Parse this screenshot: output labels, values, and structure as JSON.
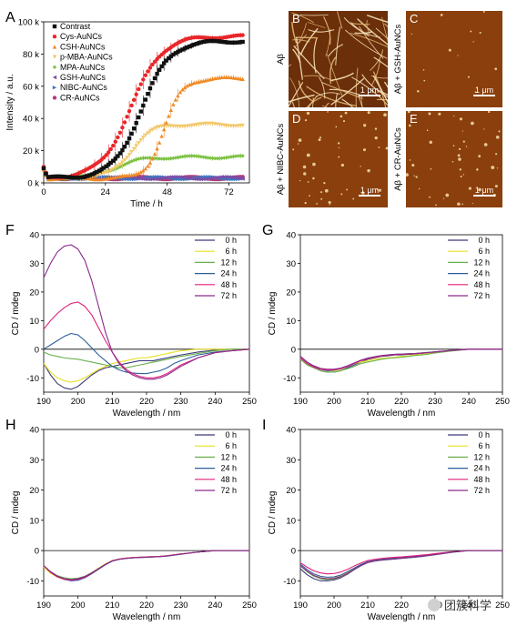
{
  "colors": {
    "contrast": "#111111",
    "cys": "#e8262a",
    "csh": "#f08a24",
    "pmba": "#f2c86a",
    "mpa": "#7cc242",
    "gsh": "#7a4fa8",
    "nibc": "#3a78c2",
    "cr": "#b03c7a",
    "cd_0h": "#3b3b7a",
    "cd_6h": "#e8e020",
    "cd_12h": "#6ab04c",
    "cd_24h": "#2d5f9a",
    "cd_48h": "#e0207a",
    "cd_72h": "#8a2a8a"
  },
  "panels": {
    "A": "A",
    "B": "B",
    "C": "C",
    "D": "D",
    "E": "E",
    "F": "F",
    "G": "G",
    "H": "H",
    "I": "I"
  },
  "micrographs": [
    {
      "id": "B",
      "label": "B",
      "side_label": "Aβ",
      "scale": "1 μm",
      "texture": "fibrils"
    },
    {
      "id": "C",
      "label": "C",
      "side_label": "Aβ + GSH-AuNCs",
      "scale": "1 μm",
      "texture": "sparse"
    },
    {
      "id": "D",
      "label": "D",
      "side_label": "Aβ + NIBC-AuNCs",
      "scale": "1 μm",
      "texture": "dots"
    },
    {
      "id": "E",
      "label": "E",
      "side_label": "Aβ + CR-AuNCs",
      "scale": "1 μm",
      "texture": "dots"
    }
  ],
  "watermark": "团簇科学",
  "chart_data": [
    {
      "id": "A",
      "type": "scatter",
      "xlabel": "Time / h",
      "ylabel": "Intensity / a.u.",
      "xlim": [
        0,
        80
      ],
      "ylim": [
        0,
        100000
      ],
      "xticks": [
        0,
        24,
        48,
        72
      ],
      "xtick_labels": [
        "0",
        "24",
        "48",
        "72"
      ],
      "yticks": [
        0,
        20000,
        40000,
        60000,
        80000,
        100000
      ],
      "ytick_labels": [
        "0 k",
        "20 k",
        "40 k",
        "60 k",
        "80 k",
        "100 k"
      ],
      "legend_position": "top-left",
      "series": [
        {
          "name": "Contrast",
          "color_key": "contrast",
          "marker": "square",
          "sigmoid": [
            85000,
            38,
            5.5,
            3000
          ]
        },
        {
          "name": "Cys-AuNCs",
          "color_key": "cys",
          "marker": "circle",
          "sigmoid": [
            88000,
            34,
            6,
            3000
          ]
        },
        {
          "name": "CSH-AuNCs",
          "color_key": "csh",
          "marker": "triangle",
          "sigmoid": [
            62000,
            47,
            3.5,
            3000
          ]
        },
        {
          "name": "p-MBA-AuNCs",
          "color_key": "pmba",
          "marker": "triangle-down",
          "sigmoid": [
            33000,
            34,
            4,
            3000
          ]
        },
        {
          "name": "MPA-AuNCs",
          "color_key": "mpa",
          "marker": "diamond",
          "sigmoid": [
            13000,
            28,
            5,
            3000
          ]
        },
        {
          "name": "GSH-AuNCs",
          "color_key": "gsh",
          "marker": "triangle-left",
          "sigmoid": [
            0,
            40,
            5,
            3000
          ]
        },
        {
          "name": "NIBC-AuNCs",
          "color_key": "nibc",
          "marker": "triangle-right",
          "sigmoid": [
            0,
            40,
            5,
            3000
          ]
        },
        {
          "name": "CR-AuNCs",
          "color_key": "cr",
          "marker": "hexagon",
          "sigmoid": [
            0,
            40,
            5,
            3000
          ]
        }
      ]
    },
    {
      "id": "F",
      "type": "line",
      "xlabel": "Wavelength / nm",
      "ylabel": "CD / mdeg",
      "xlim": [
        190,
        250
      ],
      "ylim": [
        -15,
        40
      ],
      "xticks": [
        190,
        200,
        210,
        220,
        230,
        240,
        250
      ],
      "yticks": [
        -10,
        0,
        10,
        20,
        30,
        40
      ],
      "x": [
        190,
        192,
        194,
        196,
        198,
        200,
        202,
        204,
        206,
        208,
        210,
        212,
        214,
        216,
        218,
        220,
        222,
        224,
        226,
        228,
        230,
        235,
        240,
        245,
        250
      ],
      "series": [
        {
          "name": "0 h",
          "color_key": "cd_0h",
          "values": [
            -5,
            -9,
            -12,
            -13.5,
            -14,
            -13,
            -11,
            -9,
            -7.5,
            -6.5,
            -6,
            -5.5,
            -5,
            -4.5,
            -4,
            -4,
            -4,
            -3.5,
            -3,
            -2.5,
            -2,
            -1,
            -0.3,
            0,
            0
          ]
        },
        {
          "name": "6 h",
          "color_key": "cd_6h",
          "values": [
            -5,
            -8,
            -10,
            -11,
            -11.5,
            -11,
            -10,
            -8.5,
            -7,
            -6,
            -5,
            -4.5,
            -4,
            -3.5,
            -3,
            -3,
            -2.5,
            -2,
            -1.5,
            -1,
            -0.5,
            0,
            0,
            0,
            0
          ]
        },
        {
          "name": "12 h",
          "color_key": "cd_12h",
          "values": [
            -1,
            -2,
            -2.5,
            -3,
            -3.3,
            -3.5,
            -4,
            -4.5,
            -5,
            -5.5,
            -6,
            -6.5,
            -6.5,
            -6,
            -5.5,
            -5,
            -4.5,
            -4,
            -3.5,
            -3,
            -2.5,
            -1.5,
            -0.5,
            0,
            0
          ]
        },
        {
          "name": "24 h",
          "color_key": "cd_24h",
          "values": [
            0,
            1.5,
            3,
            4.5,
            5.5,
            5,
            3,
            0.5,
            -2,
            -4,
            -6,
            -7.2,
            -8,
            -8.3,
            -8.5,
            -8.5,
            -8,
            -7.5,
            -6.5,
            -5,
            -4,
            -2,
            -1,
            -0.5,
            0
          ]
        },
        {
          "name": "48 h",
          "color_key": "cd_48h",
          "values": [
            7,
            10,
            12.5,
            14.5,
            16,
            16.5,
            15,
            12,
            7.5,
            3,
            -1,
            -4.5,
            -7,
            -8.5,
            -9.5,
            -10,
            -10,
            -9.5,
            -8.5,
            -7,
            -5.5,
            -3,
            -1.2,
            -0.5,
            0
          ]
        },
        {
          "name": "72 h",
          "color_key": "cd_72h",
          "values": [
            25,
            30,
            34,
            36,
            36.5,
            35,
            31,
            24,
            15,
            6,
            -1,
            -5,
            -7.5,
            -9,
            -10,
            -10.5,
            -10.5,
            -10,
            -9,
            -7.5,
            -6,
            -3,
            -1.2,
            -0.5,
            0
          ]
        }
      ]
    },
    {
      "id": "G",
      "type": "line",
      "xlabel": "Wavelength / nm",
      "ylabel": "CD / mdeg",
      "xlim": [
        190,
        250
      ],
      "ylim": [
        -15,
        40
      ],
      "xticks": [
        190,
        200,
        210,
        220,
        230,
        240,
        250
      ],
      "yticks": [
        -10,
        0,
        10,
        20,
        30,
        40
      ],
      "x": [
        190,
        192,
        194,
        196,
        198,
        200,
        202,
        204,
        206,
        208,
        210,
        212,
        214,
        216,
        218,
        220,
        222,
        224,
        226,
        228,
        230,
        235,
        240,
        245,
        250
      ],
      "series": [
        {
          "name": "0 h",
          "color_key": "cd_0h",
          "values": [
            -3,
            -5,
            -6.5,
            -7.5,
            -8,
            -8,
            -7.5,
            -6.5,
            -5.5,
            -4.5,
            -3.5,
            -3,
            -2.5,
            -2.3,
            -2,
            -2,
            -1.8,
            -1.7,
            -1.5,
            -1.3,
            -1,
            -0.5,
            0,
            0,
            0
          ]
        },
        {
          "name": "6 h",
          "color_key": "cd_6h",
          "values": [
            -3,
            -5,
            -6,
            -7,
            -7.5,
            -7.5,
            -7,
            -6,
            -5,
            -4.5,
            -4,
            -3.5,
            -3.2,
            -3,
            -2.8,
            -2.5,
            -2.3,
            -2,
            -1.8,
            -1.5,
            -1.2,
            -0.5,
            0,
            0,
            0
          ]
        },
        {
          "name": "12 h",
          "color_key": "cd_12h",
          "values": [
            -3.5,
            -5.5,
            -6.5,
            -7.5,
            -8,
            -8,
            -7.5,
            -6.8,
            -6,
            -5,
            -4.5,
            -4,
            -3.5,
            -3.2,
            -3,
            -2.8,
            -2.5,
            -2.2,
            -2,
            -1.7,
            -1.3,
            -0.6,
            0,
            0,
            0
          ]
        },
        {
          "name": "24 h",
          "color_key": "cd_24h",
          "values": [
            -2.5,
            -4.5,
            -6,
            -7,
            -7.5,
            -7.3,
            -6.8,
            -6,
            -5,
            -4,
            -3.2,
            -2.7,
            -2.3,
            -2,
            -1.8,
            -1.7,
            -1.6,
            -1.5,
            -1.3,
            -1.1,
            -0.9,
            -0.4,
            0,
            0,
            0
          ]
        },
        {
          "name": "48 h",
          "color_key": "cd_48h",
          "values": [
            -3,
            -5,
            -6.2,
            -7,
            -7.3,
            -7.2,
            -6.8,
            -6,
            -5,
            -4,
            -3.3,
            -2.8,
            -2.4,
            -2.1,
            -1.9,
            -1.8,
            -1.7,
            -1.6,
            -1.4,
            -1.2,
            -1,
            -0.4,
            0,
            0,
            0
          ]
        },
        {
          "name": "72 h",
          "color_key": "cd_72h",
          "values": [
            -2.5,
            -4.5,
            -5.8,
            -6.7,
            -7,
            -7,
            -6.6,
            -5.8,
            -4.8,
            -3.8,
            -3.1,
            -2.6,
            -2.2,
            -2,
            -1.8,
            -1.7,
            -1.6,
            -1.5,
            -1.3,
            -1.1,
            -0.9,
            -0.4,
            0,
            0,
            0
          ]
        }
      ]
    },
    {
      "id": "H",
      "type": "line",
      "xlabel": "Wavelength / nm",
      "ylabel": "CD / mdeg",
      "xlim": [
        190,
        250
      ],
      "ylim": [
        -15,
        40
      ],
      "xticks": [
        190,
        200,
        210,
        220,
        230,
        240,
        250
      ],
      "yticks": [
        -10,
        0,
        10,
        20,
        30,
        40
      ],
      "x": [
        190,
        192,
        194,
        196,
        198,
        200,
        202,
        204,
        206,
        208,
        210,
        212,
        214,
        216,
        218,
        220,
        222,
        224,
        226,
        228,
        230,
        235,
        240,
        245,
        250
      ],
      "series": [
        {
          "name": "0 h",
          "color_key": "cd_0h",
          "values": [
            -5,
            -7,
            -8.5,
            -9.3,
            -9.7,
            -9.5,
            -8.8,
            -7.5,
            -6,
            -4.5,
            -3.3,
            -2.8,
            -2.5,
            -2.3,
            -2.2,
            -2.1,
            -2,
            -1.9,
            -1.7,
            -1.4,
            -1.1,
            -0.5,
            0,
            0,
            0
          ]
        },
        {
          "name": "6 h",
          "color_key": "cd_6h",
          "values": [
            -5.5,
            -7.5,
            -8.8,
            -9.5,
            -9.7,
            -9.3,
            -8.5,
            -7.3,
            -5.8,
            -4.4,
            -3.3,
            -2.8,
            -2.5,
            -2.3,
            -2.2,
            -2.1,
            -2,
            -1.9,
            -1.7,
            -1.4,
            -1.1,
            -0.5,
            0,
            0,
            0
          ]
        },
        {
          "name": "12 h",
          "color_key": "cd_12h",
          "values": [
            -5,
            -7,
            -8.3,
            -9,
            -9.3,
            -9.1,
            -8.5,
            -7.3,
            -5.9,
            -4.5,
            -3.4,
            -2.9,
            -2.6,
            -2.4,
            -2.3,
            -2.2,
            -2.1,
            -2,
            -1.8,
            -1.5,
            -1.2,
            -0.5,
            0,
            0,
            0
          ]
        },
        {
          "name": "24 h",
          "color_key": "cd_24h",
          "values": [
            -5,
            -7,
            -8.5,
            -9.5,
            -10,
            -9.8,
            -9,
            -7.7,
            -6.2,
            -4.7,
            -3.5,
            -2.9,
            -2.6,
            -2.4,
            -2.3,
            -2.2,
            -2.1,
            -2,
            -1.8,
            -1.5,
            -1.2,
            -0.5,
            0,
            0,
            0
          ]
        },
        {
          "name": "48 h",
          "color_key": "cd_48h",
          "values": [
            -5,
            -7.2,
            -8.7,
            -9.5,
            -9.8,
            -9.5,
            -8.8,
            -7.5,
            -6,
            -4.6,
            -3.4,
            -2.8,
            -2.5,
            -2.3,
            -2.2,
            -2.1,
            -2,
            -1.9,
            -1.7,
            -1.4,
            -1.1,
            -0.5,
            0,
            0,
            0
          ]
        },
        {
          "name": "72 h",
          "color_key": "cd_72h",
          "values": [
            -5,
            -7,
            -8.5,
            -9.3,
            -9.6,
            -9.3,
            -8.6,
            -7.4,
            -6,
            -4.6,
            -3.4,
            -2.9,
            -2.6,
            -2.4,
            -2.3,
            -2.2,
            -2.1,
            -2,
            -1.8,
            -1.5,
            -1.2,
            -0.5,
            0,
            0,
            0
          ]
        }
      ]
    },
    {
      "id": "I",
      "type": "line",
      "xlabel": "Wavelength / nm",
      "ylabel": "CD / mdeg",
      "xlim": [
        190,
        250
      ],
      "ylim": [
        -15,
        40
      ],
      "xticks": [
        190,
        200,
        210,
        220,
        230,
        240,
        250
      ],
      "yticks": [
        -10,
        0,
        10,
        20,
        30,
        40
      ],
      "x": [
        190,
        192,
        194,
        196,
        198,
        200,
        202,
        204,
        206,
        208,
        210,
        212,
        214,
        216,
        218,
        220,
        222,
        224,
        226,
        228,
        230,
        235,
        240,
        245,
        250
      ],
      "series": [
        {
          "name": "0 h",
          "color_key": "cd_0h",
          "values": [
            -6,
            -8,
            -9.3,
            -10,
            -10,
            -9.7,
            -9,
            -7.8,
            -6.3,
            -5,
            -4,
            -3.5,
            -3.2,
            -3,
            -2.8,
            -2.6,
            -2.4,
            -2.2,
            -2,
            -1.7,
            -1.4,
            -0.6,
            0,
            0,
            0
          ]
        },
        {
          "name": "6 h",
          "color_key": "cd_6h",
          "values": [
            -5,
            -7,
            -8.3,
            -9,
            -9.3,
            -9.1,
            -8.5,
            -7.3,
            -6,
            -4.8,
            -3.8,
            -3.3,
            -3,
            -2.8,
            -2.6,
            -2.4,
            -2.2,
            -2,
            -1.8,
            -1.5,
            -1.2,
            -0.5,
            0,
            0,
            0
          ]
        },
        {
          "name": "12 h",
          "color_key": "cd_12h",
          "values": [
            -5,
            -7,
            -8.5,
            -9.3,
            -9.6,
            -9.4,
            -8.8,
            -7.6,
            -6.2,
            -4.9,
            -3.9,
            -3.4,
            -3.1,
            -2.9,
            -2.7,
            -2.5,
            -2.3,
            -2.1,
            -1.9,
            -1.6,
            -1.3,
            -0.5,
            0,
            0,
            0
          ]
        },
        {
          "name": "24 h",
          "color_key": "cd_24h",
          "values": [
            -4.5,
            -6.3,
            -7.7,
            -8.5,
            -8.8,
            -8.7,
            -8.1,
            -7,
            -5.8,
            -4.6,
            -3.7,
            -3.2,
            -2.9,
            -2.7,
            -2.5,
            -2.3,
            -2.1,
            -1.9,
            -1.7,
            -1.4,
            -1.1,
            -0.5,
            0,
            0,
            0
          ]
        },
        {
          "name": "48 h",
          "color_key": "cd_48h",
          "values": [
            -4,
            -5.5,
            -6.7,
            -7.4,
            -7.7,
            -7.6,
            -7.1,
            -6.2,
            -5.1,
            -4.1,
            -3.3,
            -2.9,
            -2.6,
            -2.4,
            -2.2,
            -2.1,
            -1.9,
            -1.7,
            -1.5,
            -1.3,
            -1,
            -0.4,
            0,
            0,
            0
          ]
        },
        {
          "name": "72 h",
          "color_key": "cd_72h",
          "values": [
            -5,
            -6.8,
            -8.2,
            -9,
            -9.3,
            -9.2,
            -8.6,
            -7.5,
            -6.2,
            -4.9,
            -3.9,
            -3.4,
            -3.1,
            -2.9,
            -2.7,
            -2.5,
            -2.3,
            -2.1,
            -1.9,
            -1.6,
            -1.3,
            -0.5,
            0,
            0,
            0
          ]
        }
      ]
    }
  ]
}
